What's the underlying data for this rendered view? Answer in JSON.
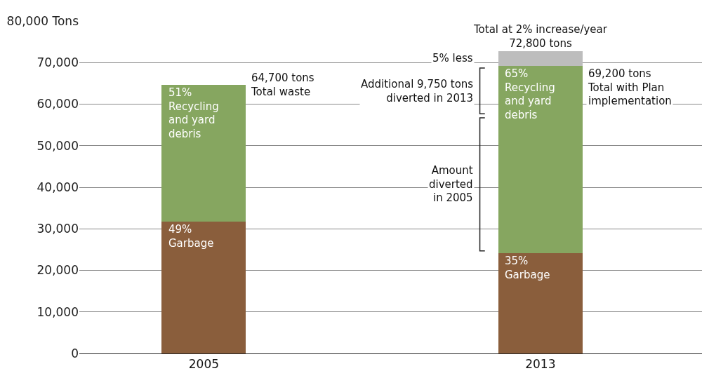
{
  "chart_data": {
    "type": "bar",
    "stacked": true,
    "categories": [
      "2005",
      "2013"
    ],
    "series": [
      {
        "color": "#8a5e3c",
        "values": [
          31700,
          24200
        ]
      },
      {
        "color": "#86a660",
        "values": [
          33000,
          45000
        ]
      },
      {
        "color": "#bdbdbd",
        "values": [
          null,
          3600
        ]
      }
    ],
    "ylim": [
      0,
      80000
    ],
    "yticks": [
      0,
      {
        "value": 10000,
        "label": "10,000"
      },
      {
        "value": 20000,
        "label": "20,000"
      },
      {
        "value": 30000,
        "label": "30,000"
      },
      {
        "value": 40000,
        "label": "40,000"
      },
      {
        "value": 50000,
        "label": "50,000"
      },
      {
        "value": 60000,
        "label": "60,000"
      },
      {
        "value": 70000,
        "label": "70,000"
      },
      {
        "value": 80000,
        "label": "80,000 Tons"
      }
    ],
    "grid": "y",
    "annotations": [
      {
        "text": "51%\nRecycling\nand yard\ndebris",
        "x": "2005",
        "y": 64700
      },
      {
        "text": "49%\nGarbage",
        "x": "2005",
        "y": 31700
      },
      "64,700 tons\nTotal waste",
      {
        "text": "65%\nRecycling\nand yard\ndebris",
        "x": "2013",
        "y": 69200
      },
      {
        "text": "35%\nGarbage",
        "x": "2013",
        "y": 24200
      },
      "69,200 tons\nTotal with Plan\nimplementation",
      {
        "text": "Total at 2% increase/year\n72,800 tons",
        "x": "2013",
        "y": 72800
      },
      "5% less",
      "Additional 9,750 tons\ndiverted in 2013",
      "Amount\ndiverted\nin 2005"
    ]
  }
}
